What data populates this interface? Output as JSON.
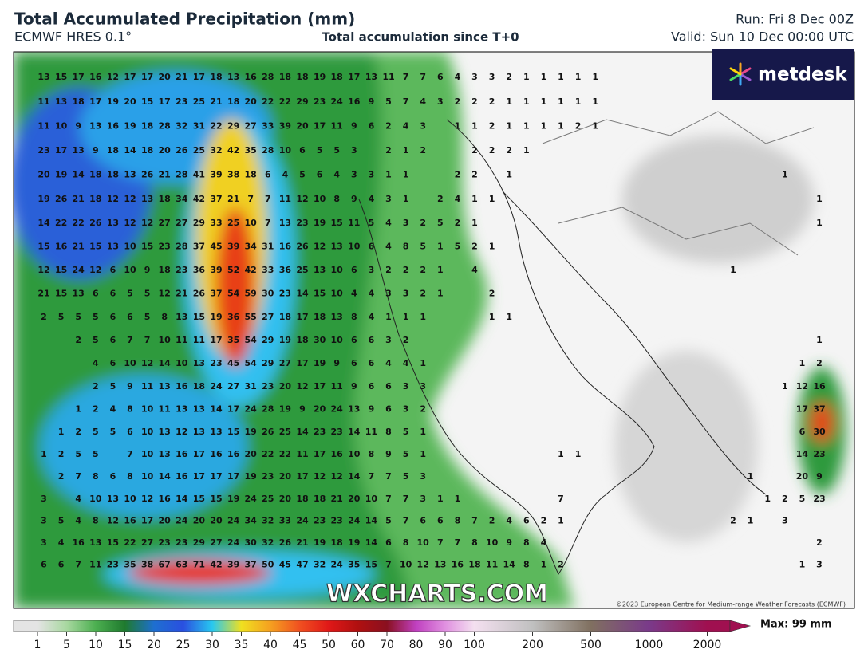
{
  "header": {
    "title": "Total Accumulated Precipitation (mm)",
    "model": "ECMWF HRES 0.1°",
    "subtitle": "Total accumulation since T+0",
    "run": "Run: Fri 8 Dec 00Z",
    "valid": "Valid: Sun 10 Dec 00:00 UTC"
  },
  "logo": "metdesk",
  "watermark": "WXCHARTS.COM",
  "copyright": "©2023 European Centre for Medium-range Weather Forecasts (ECMWF)",
  "colorbar": {
    "ticks": [
      1,
      5,
      10,
      15,
      20,
      25,
      30,
      35,
      40,
      45,
      50,
      60,
      70,
      80,
      90,
      100,
      200,
      500,
      1000,
      2000
    ],
    "colors": [
      "#e4e4e4",
      "#a8d8a0",
      "#4caf50",
      "#1f7a2e",
      "#1e6fd0",
      "#2a4fe0",
      "#28c8f0",
      "#f0e020",
      "#f5a020",
      "#f05020",
      "#e01818",
      "#b01010",
      "#8a1020",
      "#c040c0",
      "#e090e0",
      "#f4e0f0",
      "#c0c0c0",
      "#807060",
      "#7a3a8a",
      "#a01050"
    ],
    "max_label": "Max: 99 mm"
  },
  "map_labels": [
    [
      13,
      15,
      17,
      16,
      12,
      17,
      17,
      20,
      21,
      17,
      18,
      13,
      16,
      28,
      18,
      18,
      19,
      18,
      17,
      13,
      11,
      7,
      7,
      6,
      4,
      3,
      3,
      2,
      1,
      1,
      1,
      1,
      1
    ],
    [
      11,
      13,
      18,
      17,
      19,
      20,
      15,
      17,
      23,
      25,
      21,
      18,
      20,
      22,
      22,
      29,
      23,
      24,
      16,
      9,
      5,
      7,
      4,
      3,
      2,
      2,
      2,
      1,
      1,
      1,
      1,
      1,
      1
    ],
    [
      11,
      10,
      9,
      13,
      16,
      19,
      18,
      28,
      32,
      31,
      22,
      29,
      27,
      33,
      39,
      20,
      17,
      11,
      9,
      6,
      2,
      4,
      3,
      null,
      1,
      1,
      2,
      1,
      1,
      1,
      1,
      2,
      1
    ],
    [
      23,
      17,
      13,
      9,
      18,
      14,
      18,
      20,
      26,
      25,
      32,
      42,
      35,
      28,
      10,
      6,
      5,
      5,
      3,
      null,
      2,
      1,
      2,
      null,
      null,
      2,
      2,
      2,
      1
    ],
    [
      20,
      19,
      14,
      18,
      18,
      13,
      26,
      21,
      28,
      41,
      39,
      38,
      18,
      6,
      4,
      5,
      6,
      4,
      3,
      3,
      1,
      1,
      null,
      null,
      2,
      2,
      null,
      1,
      null,
      null,
      null,
      null,
      null,
      null,
      null,
      null,
      null,
      null,
      null,
      null,
      null,
      null,
      null,
      1
    ],
    [
      19,
      26,
      21,
      18,
      12,
      12,
      13,
      18,
      34,
      42,
      37,
      21,
      7,
      7,
      11,
      12,
      10,
      8,
      9,
      4,
      3,
      1,
      null,
      2,
      4,
      1,
      1,
      null,
      null,
      null,
      null,
      null,
      null,
      null,
      null,
      null,
      null,
      null,
      null,
      null,
      null,
      null,
      null,
      null,
      null,
      1
    ],
    [
      14,
      22,
      22,
      26,
      13,
      12,
      12,
      27,
      27,
      29,
      33,
      25,
      10,
      7,
      13,
      23,
      19,
      15,
      11,
      5,
      4,
      3,
      2,
      5,
      2,
      1,
      null,
      null,
      null,
      null,
      null,
      null,
      null,
      null,
      null,
      null,
      null,
      null,
      null,
      null,
      null,
      null,
      null,
      null,
      null,
      1
    ],
    [
      15,
      16,
      21,
      15,
      13,
      10,
      15,
      23,
      28,
      37,
      45,
      39,
      34,
      31,
      16,
      26,
      12,
      13,
      10,
      6,
      4,
      8,
      5,
      1,
      5,
      2,
      1
    ],
    [
      12,
      15,
      24,
      12,
      6,
      10,
      9,
      18,
      23,
      36,
      39,
      52,
      42,
      33,
      36,
      25,
      13,
      10,
      6,
      3,
      2,
      2,
      2,
      1,
      null,
      4,
      null,
      null,
      null,
      null,
      null,
      null,
      null,
      null,
      null,
      null,
      null,
      null,
      null,
      null,
      1
    ],
    [
      21,
      15,
      13,
      6,
      6,
      5,
      5,
      12,
      21,
      26,
      37,
      54,
      59,
      30,
      23,
      14,
      15,
      10,
      4,
      4,
      3,
      3,
      2,
      1,
      null,
      null,
      2
    ],
    [
      2,
      5,
      5,
      5,
      6,
      6,
      5,
      8,
      13,
      15,
      19,
      36,
      55,
      27,
      18,
      17,
      18,
      13,
      8,
      4,
      1,
      1,
      1,
      null,
      null,
      null,
      1,
      1
    ],
    [
      null,
      null,
      2,
      5,
      6,
      7,
      7,
      10,
      11,
      11,
      17,
      35,
      54,
      29,
      19,
      18,
      30,
      10,
      6,
      6,
      3,
      2,
      null,
      null,
      null,
      null,
      null,
      null,
      null,
      null,
      null,
      null,
      null,
      null,
      null,
      null,
      null,
      null,
      null,
      null,
      null,
      null,
      null,
      null,
      null,
      1
    ],
    [
      null,
      null,
      null,
      4,
      6,
      10,
      12,
      14,
      10,
      13,
      23,
      45,
      54,
      29,
      27,
      17,
      19,
      9,
      6,
      6,
      4,
      4,
      1,
      null,
      null,
      null,
      null,
      null,
      null,
      null,
      null,
      null,
      null,
      null,
      null,
      null,
      null,
      null,
      null,
      null,
      null,
      null,
      null,
      null,
      1,
      2
    ],
    [
      null,
      null,
      null,
      2,
      5,
      9,
      11,
      13,
      16,
      18,
      24,
      27,
      31,
      23,
      20,
      12,
      17,
      11,
      9,
      6,
      6,
      3,
      3,
      null,
      null,
      null,
      null,
      null,
      null,
      null,
      null,
      null,
      null,
      null,
      null,
      null,
      null,
      null,
      null,
      null,
      null,
      null,
      null,
      1,
      12,
      16
    ],
    [
      null,
      null,
      1,
      2,
      4,
      8,
      10,
      11,
      13,
      13,
      14,
      17,
      24,
      28,
      19,
      9,
      20,
      24,
      13,
      9,
      6,
      3,
      2,
      null,
      null,
      null,
      null,
      null,
      null,
      null,
      null,
      null,
      null,
      null,
      null,
      null,
      null,
      null,
      null,
      null,
      null,
      null,
      null,
      null,
      17,
      37
    ],
    [
      null,
      1,
      2,
      5,
      5,
      6,
      10,
      13,
      12,
      13,
      13,
      15,
      19,
      26,
      25,
      14,
      23,
      23,
      14,
      11,
      8,
      5,
      1,
      null,
      null,
      null,
      null,
      null,
      null,
      null,
      null,
      null,
      null,
      null,
      null,
      null,
      null,
      null,
      null,
      null,
      null,
      null,
      null,
      null,
      6,
      30
    ],
    [
      1,
      2,
      5,
      5,
      null,
      7,
      10,
      13,
      16,
      17,
      16,
      16,
      20,
      22,
      22,
      11,
      17,
      16,
      10,
      8,
      9,
      5,
      1,
      null,
      null,
      null,
      null,
      null,
      null,
      null,
      1,
      1,
      null,
      null,
      null,
      null,
      null,
      null,
      null,
      null,
      null,
      null,
      null,
      null,
      14,
      23
    ],
    [
      null,
      2,
      7,
      8,
      6,
      8,
      10,
      14,
      16,
      17,
      17,
      17,
      19,
      23,
      20,
      17,
      12,
      12,
      14,
      7,
      7,
      5,
      3,
      null,
      null,
      null,
      null,
      null,
      null,
      null,
      null,
      null,
      null,
      null,
      null,
      null,
      null,
      null,
      null,
      null,
      null,
      1,
      null,
      null,
      20,
      9
    ],
    [
      3,
      null,
      4,
      10,
      13,
      10,
      12,
      16,
      14,
      15,
      15,
      19,
      24,
      25,
      20,
      18,
      18,
      21,
      20,
      10,
      7,
      7,
      3,
      1,
      1,
      null,
      null,
      null,
      null,
      null,
      7,
      null,
      null,
      null,
      null,
      null,
      null,
      null,
      null,
      null,
      null,
      null,
      1,
      2,
      5,
      23
    ],
    [
      3,
      5,
      4,
      8,
      12,
      16,
      17,
      20,
      24,
      20,
      20,
      24,
      34,
      32,
      33,
      24,
      23,
      23,
      24,
      14,
      5,
      7,
      6,
      6,
      8,
      7,
      2,
      4,
      6,
      2,
      1,
      null,
      null,
      null,
      null,
      null,
      null,
      null,
      null,
      null,
      2,
      1,
      null,
      3
    ],
    [
      3,
      4,
      16,
      13,
      15,
      22,
      27,
      23,
      23,
      29,
      27,
      24,
      30,
      32,
      26,
      21,
      19,
      18,
      19,
      14,
      6,
      8,
      10,
      7,
      7,
      8,
      10,
      9,
      8,
      4,
      null,
      null,
      null,
      null,
      null,
      null,
      null,
      null,
      null,
      null,
      null,
      null,
      null,
      null,
      null,
      2
    ],
    [
      6,
      6,
      7,
      11,
      23,
      35,
      38,
      67,
      63,
      71,
      42,
      39,
      37,
      50,
      45,
      47,
      32,
      24,
      35,
      15,
      7,
      10,
      12,
      13,
      16,
      18,
      11,
      14,
      8,
      1,
      2,
      null,
      null,
      null,
      null,
      null,
      null,
      null,
      null,
      null,
      null,
      null,
      null,
      null,
      1,
      3
    ]
  ]
}
